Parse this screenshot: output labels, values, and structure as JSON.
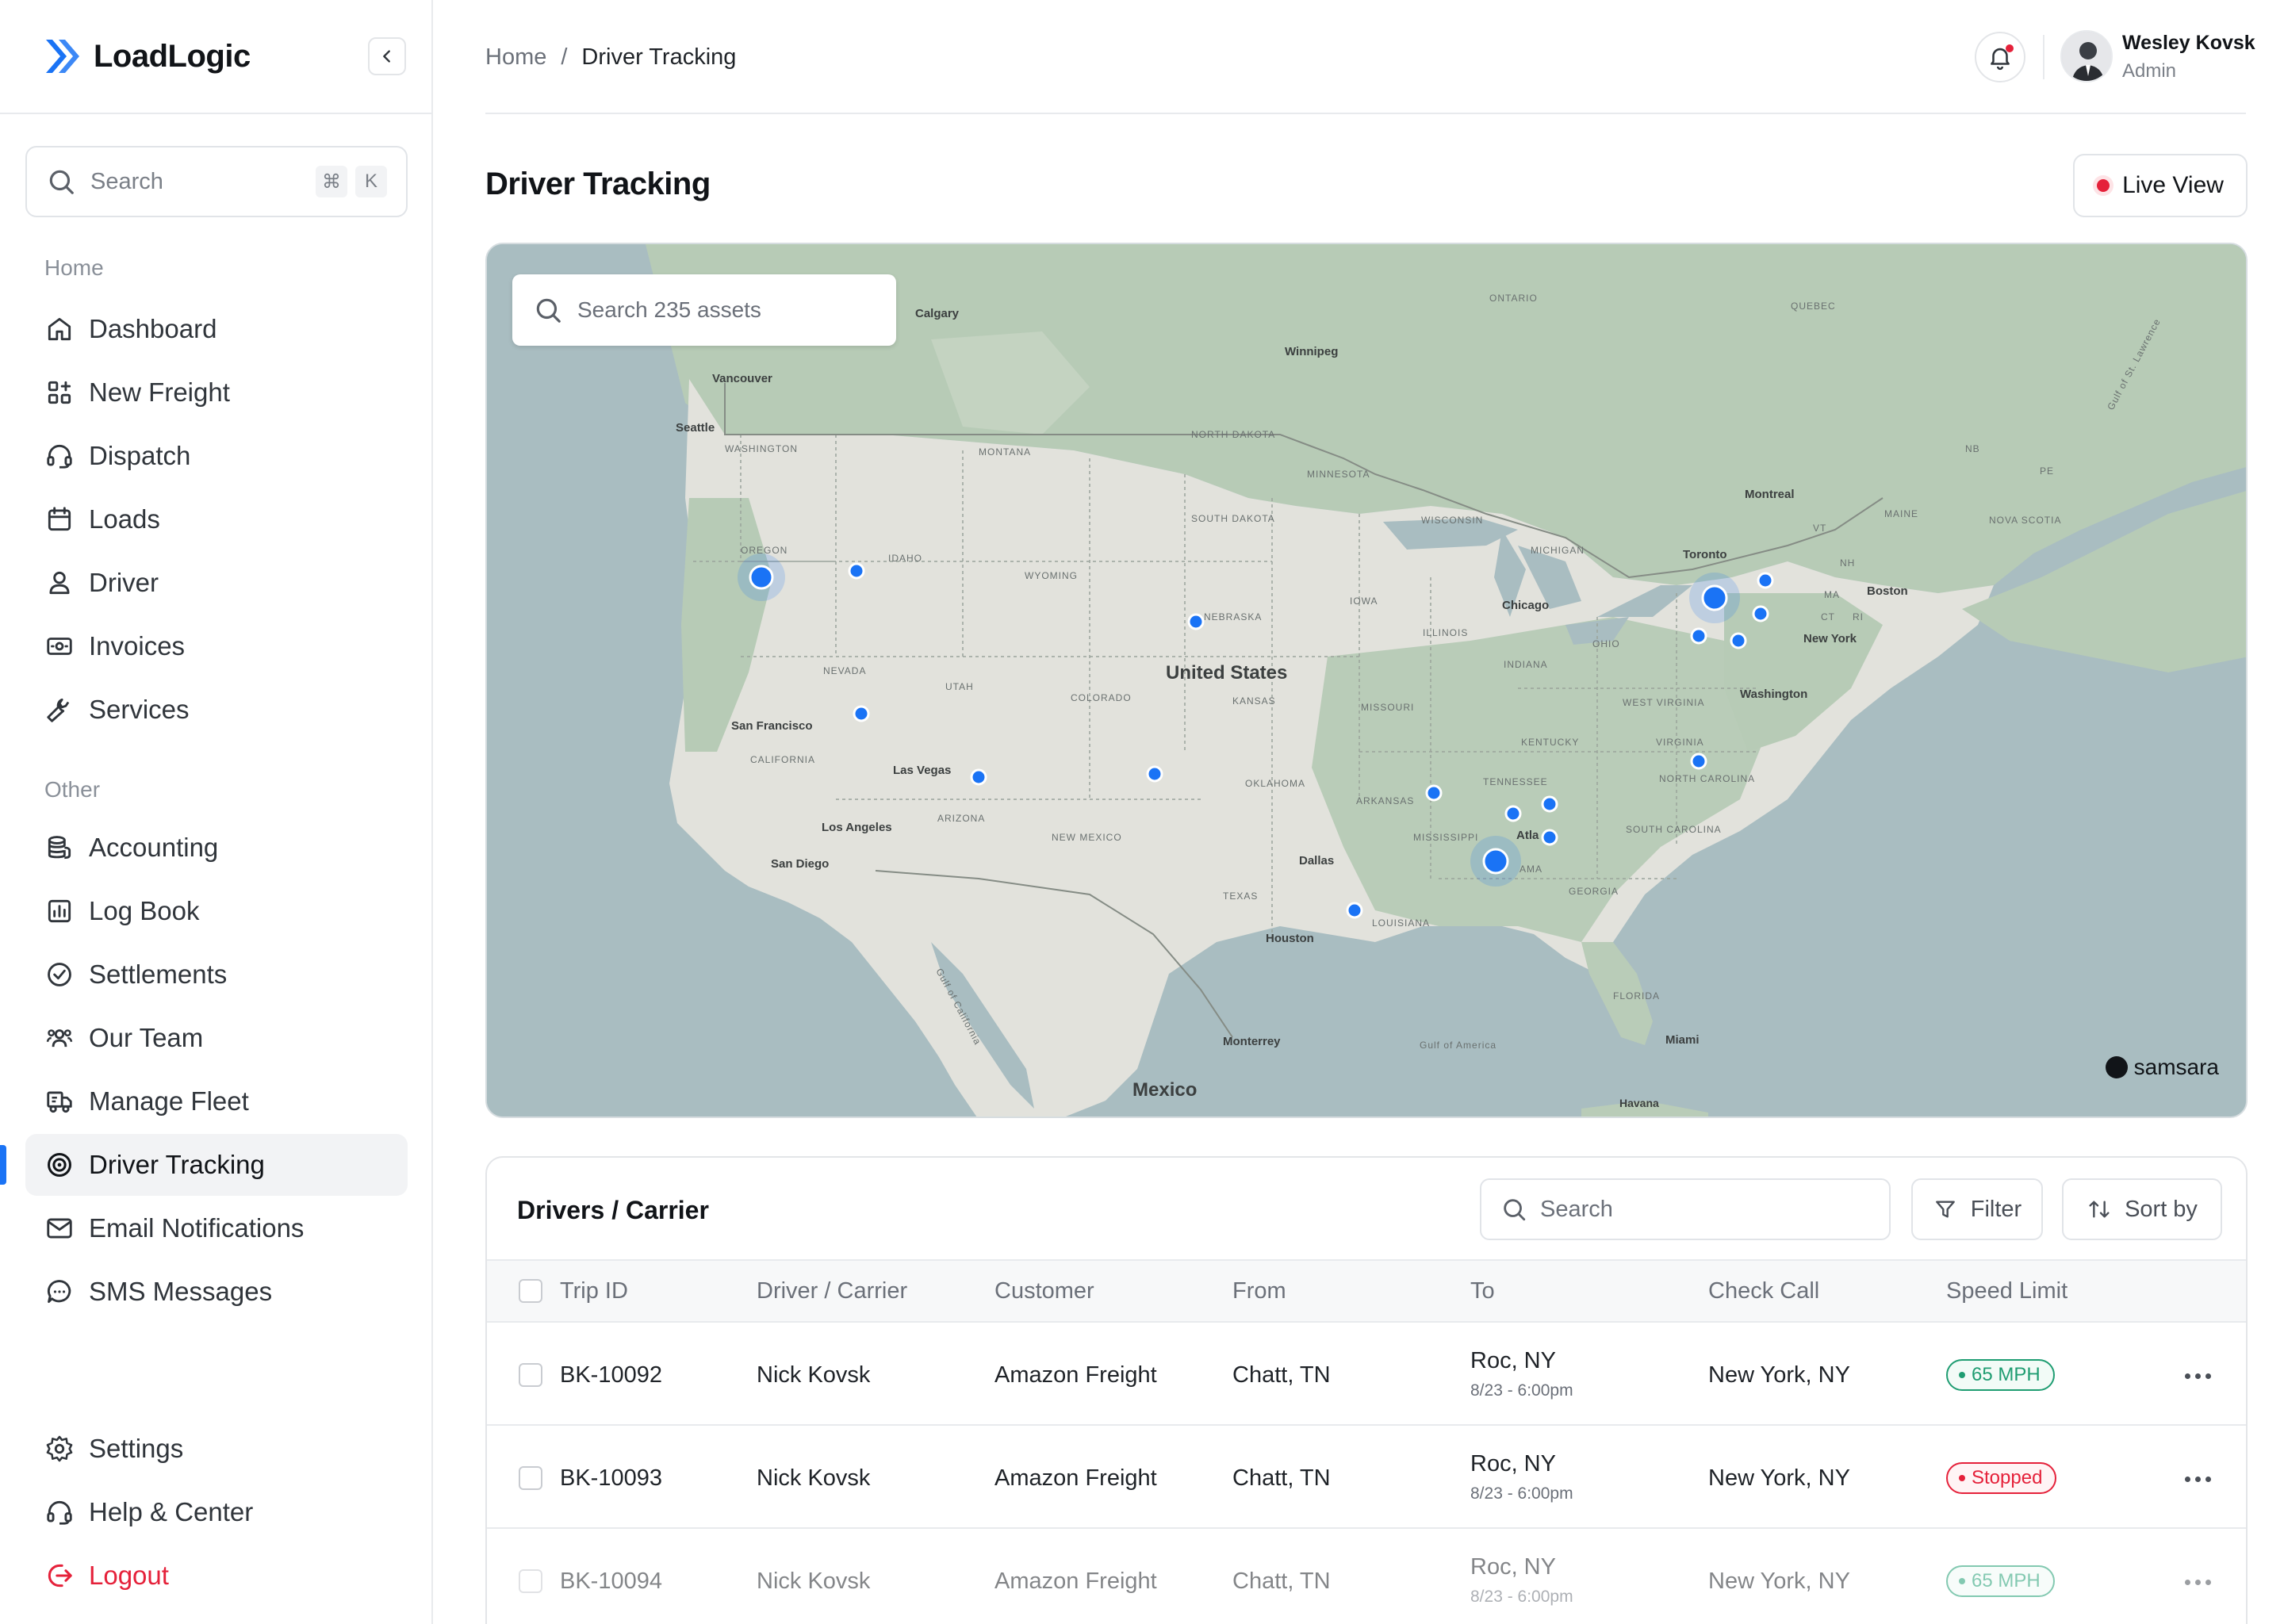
{
  "app": {
    "name": "LoadLogic"
  },
  "sidebar": {
    "search": {
      "placeholder": "Search",
      "shortcut_mod": "⌘",
      "shortcut_key": "K"
    },
    "sections": {
      "home": "Home",
      "other": "Other"
    },
    "home_items": [
      {
        "label": "Dashboard",
        "icon": "home-icon"
      },
      {
        "label": "New Freight",
        "icon": "grid-plus-icon"
      },
      {
        "label": "Dispatch",
        "icon": "headset-icon"
      },
      {
        "label": "Loads",
        "icon": "calendar-icon"
      },
      {
        "label": "Driver",
        "icon": "user-icon"
      },
      {
        "label": "Invoices",
        "icon": "cash-icon"
      },
      {
        "label": "Services",
        "icon": "wrench-icon"
      }
    ],
    "other_items": [
      {
        "label": "Accounting",
        "icon": "coins-icon"
      },
      {
        "label": "Log Book",
        "icon": "chart-icon"
      },
      {
        "label": "Settlements",
        "icon": "check-circle-icon"
      },
      {
        "label": "Our Team",
        "icon": "team-icon"
      },
      {
        "label": "Manage Fleet",
        "icon": "truck-icon"
      },
      {
        "label": "Driver Tracking",
        "icon": "target-icon",
        "active": true
      },
      {
        "label": "Email Notifications",
        "icon": "mail-icon"
      },
      {
        "label": "SMS Messages",
        "icon": "chat-icon"
      }
    ],
    "footer_items": [
      {
        "label": "Settings",
        "icon": "gear-icon"
      },
      {
        "label": "Help & Center",
        "icon": "headset-icon"
      },
      {
        "label": "Logout",
        "icon": "logout-icon"
      }
    ]
  },
  "header": {
    "breadcrumb": {
      "root": "Home",
      "sep": "/",
      "current": "Driver Tracking"
    },
    "user": {
      "name": "Wesley Kovsk",
      "role": "Admin"
    }
  },
  "page": {
    "title": "Driver Tracking",
    "live_view_label": "Live View"
  },
  "map": {
    "search_placeholder": "Search 235 assets",
    "attribution": "samsara",
    "labels": {
      "countries": [
        "United States",
        "Mexico"
      ],
      "cities": [
        "Calgary",
        "Winnipeg",
        "Vancouver",
        "Seattle",
        "Montreal",
        "Toronto",
        "Boston",
        "New York",
        "Chicago",
        "Washington",
        "San Francisco",
        "Las Vegas",
        "Los Angeles",
        "San Diego",
        "Dallas",
        "Houston",
        "Atla",
        "Monterrey",
        "Miami",
        "Havana"
      ],
      "regions": [
        "ONTARIO",
        "QUEBEC",
        "WASHINGTON",
        "MONTANA",
        "NORTH DAKOTA",
        "MINNESOTA",
        "SOUTH DAKOTA",
        "WISCONSIN",
        "MICHIGAN",
        "MAINE",
        "NOVA SCOTIA",
        "NB",
        "PE",
        "VT",
        "NH",
        "MA",
        "CT",
        "RI",
        "OREGON",
        "IDAHO",
        "WYOMING",
        "NEBRASKA",
        "IOWA",
        "ILLINOIS",
        "INDIANA",
        "OHIO",
        "NEVADA",
        "UTAH",
        "COLORADO",
        "KANSAS",
        "MISSOURI",
        "KENTUCKY",
        "WEST VIRGINIA",
        "VIRGINIA",
        "CALIFORNIA",
        "ARIZONA",
        "NEW MEXICO",
        "OKLAHOMA",
        "ARKANSAS",
        "TENNESSEE",
        "NORTH CAROLINA",
        "SOUTH CAROLINA",
        "MISSISSIPPI",
        "AMA",
        "GEORGIA",
        "TEXAS",
        "LOUISIANA",
        "FLORIDA",
        "Gulf of America",
        "Gulf of St. Lawrence",
        "Gulf of California"
      ]
    }
  },
  "drivers": {
    "title": "Drivers / Carrier",
    "search_placeholder": "Search",
    "filter_label": "Filter",
    "sort_label": "Sort by",
    "columns": [
      "Trip ID",
      "Driver / Carrier",
      "Customer",
      "From",
      "To",
      "Check Call",
      "Speed Limit"
    ],
    "rows": [
      {
        "trip_id": "BK-10092",
        "driver": "Nick Kovsk",
        "customer": "Amazon Freight",
        "from": "Chatt, TN",
        "to_city": "Roc, NY",
        "to_time": "8/23 - 6:00pm",
        "check_call": "New York, NY",
        "status": "65 MPH",
        "status_type": "ok"
      },
      {
        "trip_id": "BK-10093",
        "driver": "Nick Kovsk",
        "customer": "Amazon Freight",
        "from": "Chatt, TN",
        "to_city": "Roc, NY",
        "to_time": "8/23 - 6:00pm",
        "check_call": "New York, NY",
        "status": "Stopped",
        "status_type": "stop"
      },
      {
        "trip_id": "BK-10094",
        "driver": "Nick Kovsk",
        "customer": "Amazon Freight",
        "from": "Chatt, TN",
        "to_city": "Roc, NY",
        "to_time": "8/23 - 6:00pm",
        "check_call": "New York, NY",
        "status": "65 MPH",
        "status_type": "ok"
      }
    ]
  },
  "colors": {
    "accent": "#1a73f5",
    "danger": "#e5213a",
    "success": "#1f9d72",
    "water": "#a8bcc0",
    "land_us": "#e4e3de",
    "land_green": "#b5c9b4"
  }
}
